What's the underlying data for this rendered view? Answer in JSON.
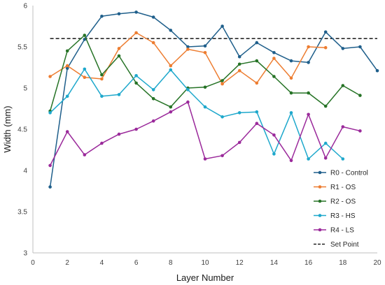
{
  "chart_data": {
    "type": "line",
    "title": "",
    "xlabel": "Layer Number",
    "ylabel": "Width (mm)",
    "xlim": [
      0,
      20
    ],
    "ylim": [
      3,
      6
    ],
    "xticks": [
      0,
      2,
      4,
      6,
      8,
      10,
      12,
      14,
      16,
      18,
      20
    ],
    "yticks": [
      3,
      3.5,
      4,
      4.5,
      5,
      5.5,
      6
    ],
    "grid": false,
    "legend_position": "bottom-right",
    "series": [
      {
        "name": "R0 - Control",
        "color": "#1f5f8b",
        "x": [
          1,
          2,
          3,
          4,
          5,
          6,
          7,
          8,
          9,
          10,
          11,
          12,
          13,
          14,
          15,
          16,
          17,
          18,
          19,
          20
        ],
        "y": [
          3.8,
          5.24,
          5.59,
          5.87,
          5.9,
          5.92,
          5.86,
          5.7,
          5.5,
          5.51,
          5.75,
          5.38,
          5.55,
          5.43,
          5.33,
          5.31,
          5.68,
          5.48,
          5.5,
          5.21
        ]
      },
      {
        "name": "R1 - OS",
        "color": "#ed7d31",
        "x": [
          1,
          2,
          3,
          4,
          5,
          6,
          7,
          8,
          9,
          10,
          11,
          12,
          13,
          14,
          15,
          16,
          17
        ],
        "y": [
          5.14,
          5.27,
          5.13,
          5.11,
          5.48,
          5.67,
          5.55,
          5.27,
          5.47,
          5.43,
          5.05,
          5.21,
          5.06,
          5.36,
          5.12,
          5.5,
          5.49
        ]
      },
      {
        "name": "R2 - OS",
        "color": "#267326",
        "x": [
          1,
          2,
          3,
          4,
          5,
          6,
          7,
          8,
          9,
          10,
          11,
          12,
          13,
          14,
          15,
          16,
          17,
          18,
          19
        ],
        "y": [
          4.72,
          5.45,
          5.64,
          5.16,
          5.39,
          5.06,
          4.87,
          4.77,
          5.0,
          5.01,
          5.09,
          5.29,
          5.33,
          5.14,
          4.94,
          4.94,
          4.78,
          5.03,
          4.91
        ]
      },
      {
        "name": "R3 - HS",
        "color": "#1ea8cc",
        "x": [
          1,
          2,
          3,
          4,
          5,
          6,
          7,
          8,
          9,
          10,
          11,
          12,
          13,
          14,
          15,
          16,
          17,
          18
        ],
        "y": [
          4.7,
          4.9,
          5.23,
          4.9,
          4.92,
          5.15,
          4.98,
          5.22,
          4.98,
          4.77,
          4.65,
          4.7,
          4.71,
          4.2,
          4.7,
          4.14,
          4.33,
          4.14
        ]
      },
      {
        "name": "R4 - LS",
        "color": "#9b2a9b",
        "x": [
          1,
          2,
          3,
          4,
          5,
          6,
          7,
          8,
          9,
          10,
          11,
          12,
          13,
          14,
          15,
          16,
          17,
          18,
          19
        ],
        "y": [
          4.06,
          4.47,
          4.19,
          4.33,
          4.44,
          4.5,
          4.6,
          4.71,
          4.83,
          4.14,
          4.18,
          4.34,
          4.57,
          4.43,
          4.12,
          4.68,
          4.15,
          4.53,
          4.48
        ]
      }
    ],
    "reference_line": {
      "name": "Set Point",
      "y": 5.6,
      "x_range": [
        1,
        20
      ],
      "color": "#000000",
      "style": "dashed"
    }
  }
}
